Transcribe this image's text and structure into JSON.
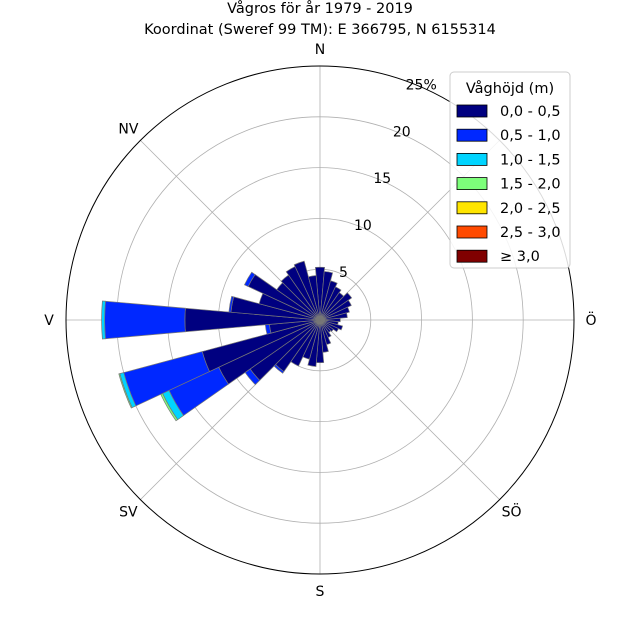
{
  "title_line1": "Vågros för år 1979 - 2019",
  "title_line2": "Koordinat (Sweref 99 TM): E 366795, N 6155314",
  "chart_data": {
    "type": "bar",
    "subtype": "wind-rose",
    "directions": [
      "N",
      "Ö",
      "S",
      "V",
      "NV",
      "SV",
      "SÖ"
    ],
    "direction_labels": [
      {
        "label": "N",
        "angle": 0
      },
      {
        "label": "Ö",
        "angle": 90
      },
      {
        "label": "SÖ",
        "angle": 135
      },
      {
        "label": "S",
        "angle": 180
      },
      {
        "label": "SV",
        "angle": 225
      },
      {
        "label": "V",
        "angle": 270
      },
      {
        "label": "NV",
        "angle": 315
      }
    ],
    "radial_ticks": [
      "5",
      "10",
      "15",
      "20",
      "25%"
    ],
    "radial_tick_values": [
      5,
      10,
      15,
      20,
      25
    ],
    "rmax": 25,
    "sector_width_deg": 10,
    "legend_title": "Våghöjd (m)",
    "legend_placement": "top-right",
    "series": [
      {
        "name": "0,0 - 0,5",
        "color": "#000080"
      },
      {
        "name": "0,5 - 1,0",
        "color": "#0028ff"
      },
      {
        "name": "1,0 - 1,5",
        "color": "#00d4ff"
      },
      {
        "name": "1,5 - 2,0",
        "color": "#7dff7a"
      },
      {
        "name": "2,0 - 2,5",
        "color": "#ffe500"
      },
      {
        "name": "2,5 - 3,0",
        "color": "#ff4a00"
      },
      {
        "name": "≥ 3,0",
        "color": "#800000"
      }
    ],
    "sectors": [
      {
        "dir": 0,
        "values": [
          5.2,
          0,
          0,
          0,
          0,
          0,
          0
        ]
      },
      {
        "dir": 10,
        "values": [
          4.8,
          0,
          0,
          0,
          0,
          0,
          0
        ]
      },
      {
        "dir": 20,
        "values": [
          4.0,
          0,
          0,
          0,
          0,
          0,
          0
        ]
      },
      {
        "dir": 30,
        "values": [
          3.6,
          0,
          0,
          0,
          0,
          0,
          0
        ]
      },
      {
        "dir": 40,
        "values": [
          3.3,
          0,
          0,
          0,
          0,
          0,
          0
        ]
      },
      {
        "dir": 50,
        "values": [
          3.8,
          0,
          0,
          0,
          0,
          0,
          0
        ]
      },
      {
        "dir": 60,
        "values": [
          3.4,
          0,
          0,
          0,
          0,
          0,
          0
        ]
      },
      {
        "dir": 70,
        "values": [
          3.0,
          0,
          0,
          0,
          0,
          0,
          0
        ]
      },
      {
        "dir": 80,
        "values": [
          2.7,
          0,
          0,
          0,
          0,
          0,
          0
        ]
      },
      {
        "dir": 90,
        "values": [
          2.0,
          0,
          0,
          0,
          0,
          0,
          0
        ]
      },
      {
        "dir": 100,
        "values": [
          1.8,
          0,
          0,
          0,
          0,
          0,
          0
        ]
      },
      {
        "dir": 110,
        "values": [
          2.3,
          0,
          0,
          0,
          0,
          0,
          0
        ]
      },
      {
        "dir": 120,
        "values": [
          2.0,
          0,
          0,
          0,
          0,
          0,
          0
        ]
      },
      {
        "dir": 130,
        "values": [
          1.6,
          0,
          0,
          0,
          0,
          0,
          0
        ]
      },
      {
        "dir": 140,
        "values": [
          1.5,
          0,
          0,
          0,
          0,
          0,
          0
        ]
      },
      {
        "dir": 150,
        "values": [
          1.9,
          0,
          0,
          0,
          0,
          0,
          0
        ]
      },
      {
        "dir": 160,
        "values": [
          2.5,
          0,
          0,
          0,
          0,
          0,
          0
        ]
      },
      {
        "dir": 170,
        "values": [
          3.2,
          0,
          0,
          0,
          0,
          0,
          0
        ]
      },
      {
        "dir": 180,
        "values": [
          4.2,
          0,
          0,
          0,
          0,
          0,
          0
        ]
      },
      {
        "dir": 190,
        "values": [
          4.6,
          0,
          0,
          0,
          0,
          0,
          0
        ]
      },
      {
        "dir": 200,
        "values": [
          4.0,
          0,
          0,
          0,
          0,
          0,
          0
        ]
      },
      {
        "dir": 210,
        "values": [
          5.0,
          0,
          0,
          0,
          0,
          0,
          0
        ]
      },
      {
        "dir": 220,
        "values": [
          6.2,
          0.2,
          0,
          0,
          0,
          0,
          0
        ]
      },
      {
        "dir": 230,
        "values": [
          8.4,
          0.6,
          0,
          0,
          0,
          0,
          0
        ]
      },
      {
        "dir": 240,
        "values": [
          11.0,
          5.4,
          0.7,
          0.2,
          0,
          0,
          0
        ]
      },
      {
        "dir": 250,
        "values": [
          12.0,
          8.0,
          0.4,
          0.1,
          0,
          0,
          0
        ]
      },
      {
        "dir": 260,
        "values": [
          5.0,
          0.4,
          0,
          0,
          0,
          0,
          0
        ]
      },
      {
        "dir": 270,
        "values": [
          13.3,
          7.9,
          0.3,
          0,
          0,
          0,
          0
        ]
      },
      {
        "dir": 280,
        "values": [
          8.8,
          0.2,
          0,
          0,
          0,
          0,
          0
        ]
      },
      {
        "dir": 290,
        "values": [
          6.2,
          0,
          0,
          0,
          0,
          0,
          0
        ]
      },
      {
        "dir": 300,
        "values": [
          7.8,
          0.4,
          0,
          0,
          0,
          0,
          0
        ]
      },
      {
        "dir": 310,
        "values": [
          5.2,
          0,
          0,
          0,
          0,
          0,
          0
        ]
      },
      {
        "dir": 320,
        "values": [
          5.4,
          0,
          0,
          0,
          0,
          0,
          0
        ]
      },
      {
        "dir": 330,
        "values": [
          5.8,
          0,
          0,
          0,
          0,
          0,
          0
        ]
      },
      {
        "dir": 340,
        "values": [
          6.0,
          0,
          0,
          0,
          0,
          0,
          0
        ]
      },
      {
        "dir": 350,
        "values": [
          4.4,
          0,
          0,
          0,
          0,
          0,
          0
        ]
      }
    ],
    "grid": true
  }
}
